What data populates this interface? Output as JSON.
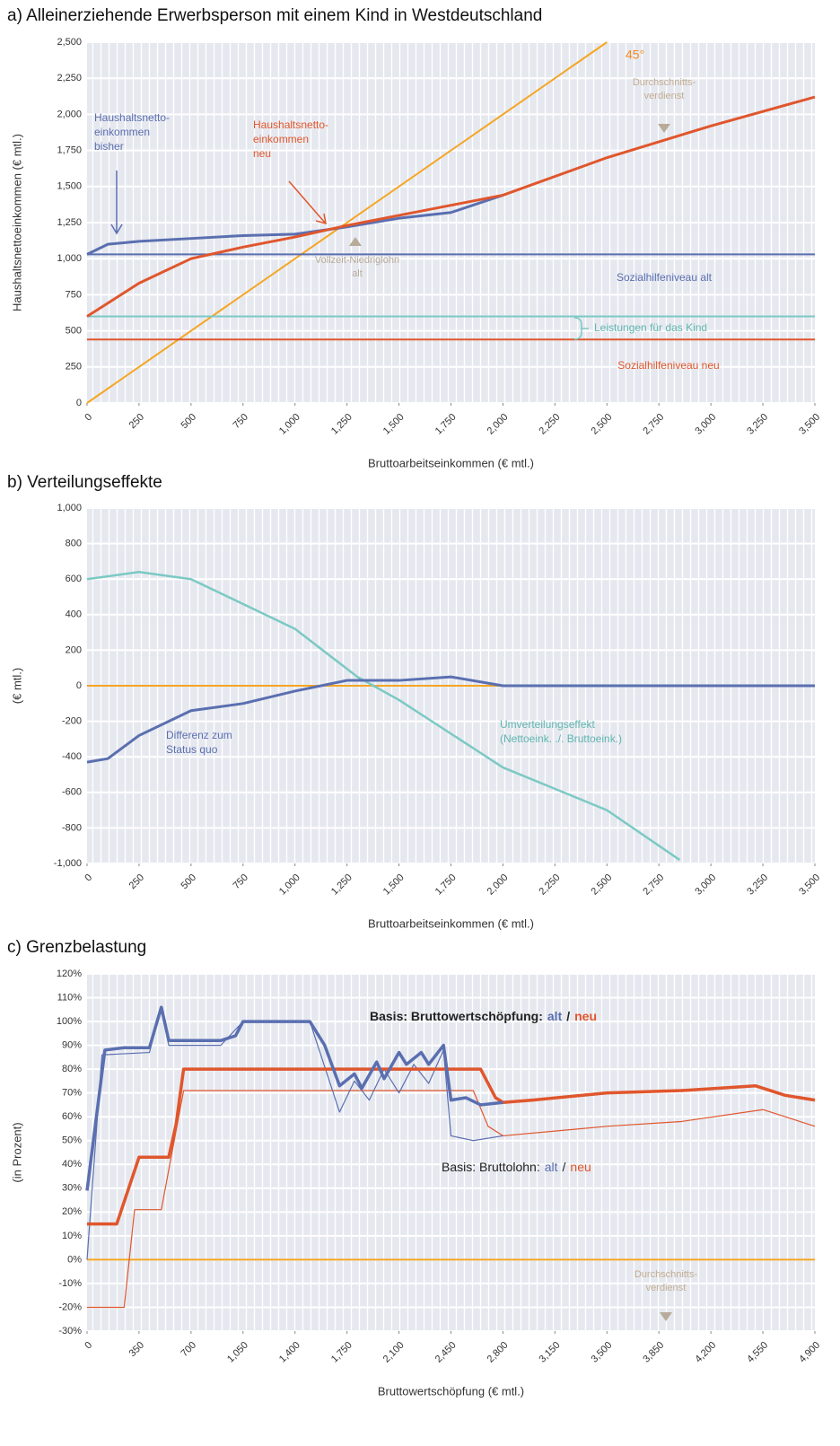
{
  "chart_data": [
    {
      "type": "line",
      "title": "a) Alleinerziehende Erwerbsperson mit einem Kind in Westdeutschland",
      "xlabel": "Bruttoarbeitseinkommen (€ mtl.)",
      "ylabel": "Haushaltsnettoeinkommen (€ mtl.)",
      "xlim": [
        0,
        3500
      ],
      "ylim": [
        0,
        2500
      ],
      "xticks": [
        0,
        250,
        500,
        750,
        {
          "value": 1000,
          "label": "1,000"
        },
        {
          "value": 1250,
          "label": "1,250"
        },
        {
          "value": 1500,
          "label": "1,500"
        },
        {
          "value": 1750,
          "label": "1,750"
        },
        {
          "value": 2000,
          "label": "2,000"
        },
        {
          "value": 2250,
          "label": "2,250"
        },
        {
          "value": 2500,
          "label": "2,500"
        },
        {
          "value": 2750,
          "label": "2,750"
        },
        {
          "value": 3000,
          "label": "3,000"
        },
        {
          "value": 3250,
          "label": "3,250"
        },
        {
          "value": 3500,
          "label": "3,500"
        }
      ],
      "yticks": [
        0,
        250,
        500,
        750,
        {
          "value": 1000,
          "label": "1,000"
        },
        {
          "value": 1250,
          "label": "1,250"
        },
        {
          "value": 1500,
          "label": "1,500"
        },
        {
          "value": 1750,
          "label": "1,750"
        },
        {
          "value": 2000,
          "label": "2,000"
        },
        {
          "value": 2250,
          "label": "2,250"
        },
        {
          "value": 2500,
          "label": "2,500"
        }
      ],
      "series": [
        {
          "color": "#f5a623",
          "width": 2,
          "x": [
            0,
            2500
          ],
          "values": [
            0,
            2500
          ]
        },
        {
          "color": "#5a6fb0",
          "width": 2,
          "x": [
            0,
            3500
          ],
          "values": [
            1030,
            1030
          ]
        },
        {
          "color": "#7cc9c4",
          "width": 2,
          "x": [
            0,
            3500
          ],
          "values": [
            600,
            600
          ]
        },
        {
          "color": "#e0562c",
          "width": 2,
          "x": [
            0,
            3500
          ],
          "values": [
            440,
            440
          ]
        },
        {
          "color": "#5a6fb0",
          "width": 3,
          "x": [
            0,
            100,
            250,
            500,
            750,
            1000,
            1250,
            1500,
            1750,
            2000
          ],
          "values": [
            1030,
            1100,
            1120,
            1140,
            1160,
            1170,
            1220,
            1280,
            1320,
            1440
          ]
        },
        {
          "color": "#e0562c",
          "width": 3,
          "x": [
            0,
            250,
            500,
            750,
            1000,
            1250,
            1500,
            1750,
            2000,
            2500,
            3000,
            3500
          ],
          "values": [
            600,
            830,
            1000,
            1080,
            1150,
            1230,
            1300,
            1370,
            1440,
            1700,
            1920,
            2120
          ]
        }
      ],
      "annotations": [
        {
          "lines": [
            "45°"
          ],
          "color": "#f08a24"
        },
        {
          "lines": [
            "Durchschnitts-",
            "verdienst"
          ],
          "color": "#c2ad92"
        },
        {
          "lines": [
            "Haushaltsnetto-",
            "einkommen",
            "bisher"
          ],
          "color": "#5a6fb0"
        },
        {
          "lines": [
            "Haushaltsnetto-",
            "einkommen",
            "neu"
          ],
          "color": "#e0562c"
        },
        {
          "lines": [
            "Vollzeit-Niedriglohn",
            "alt"
          ],
          "color": "#b8ab9a"
        },
        {
          "lines": [
            "Sozialhilfeniveau alt"
          ],
          "color": "#5a6fb0"
        },
        {
          "lines": [
            "Leistungen für das Kind"
          ],
          "color": "#5fb5b0"
        },
        {
          "lines": [
            "Sozialhilfeniveau neu"
          ],
          "color": "#e0562c"
        }
      ]
    },
    {
      "type": "line",
      "title": "b) Verteilungseffekte",
      "xlabel": "Bruttoarbeitseinkommen (€ mtl.)",
      "ylabel": "(€ mtl.)",
      "xlim": [
        0,
        3500
      ],
      "ylim": [
        -1000,
        1000
      ],
      "xticks": [
        0,
        250,
        500,
        750,
        {
          "value": 1000,
          "label": "1,000"
        },
        {
          "value": 1250,
          "label": "1,250"
        },
        {
          "value": 1500,
          "label": "1,500"
        },
        {
          "value": 1750,
          "label": "1,750"
        },
        {
          "value": 2000,
          "label": "2,000"
        },
        {
          "value": 2250,
          "label": "2,250"
        },
        {
          "value": 2500,
          "label": "2,500"
        },
        {
          "value": 2750,
          "label": "2,750"
        },
        {
          "value": 3000,
          "label": "3,000"
        },
        {
          "value": 3250,
          "label": "3,250"
        },
        {
          "value": 3500,
          "label": "3,500"
        }
      ],
      "yticks": [
        {
          "value": -1000,
          "label": "-1,000"
        },
        -800,
        -600,
        -400,
        -200,
        0,
        200,
        400,
        600,
        800,
        {
          "value": 1000,
          "label": "1,000"
        }
      ],
      "series": [
        {
          "color": "#f5a623",
          "width": 2,
          "x": [
            0,
            3500
          ],
          "values": [
            0,
            0
          ]
        },
        {
          "color": "#7cc9c4",
          "width": 2.5,
          "x": [
            0,
            250,
            500,
            1000,
            1300,
            1500,
            2000,
            2500,
            2850
          ],
          "values": [
            600,
            640,
            600,
            320,
            50,
            -80,
            -460,
            -700,
            -980
          ]
        },
        {
          "color": "#5a6fb0",
          "width": 3,
          "x": [
            0,
            100,
            250,
            500,
            750,
            1000,
            1250,
            1500,
            1750,
            2000,
            3500
          ],
          "values": [
            -430,
            -410,
            -280,
            -140,
            -100,
            -30,
            30,
            30,
            50,
            0,
            0
          ]
        }
      ],
      "annotations": [
        {
          "lines": [
            "Differenz zum",
            "Status quo"
          ],
          "color": "#5a6fb0"
        },
        {
          "lines": [
            "Umverteilungseffekt",
            "(Nettoeink. ./. Bruttoeink.)"
          ],
          "color": "#5fb5b0"
        }
      ]
    },
    {
      "type": "line",
      "title": "c) Grenzbelastung",
      "xlabel": "Bruttowertschöpfung (€ mtl.)",
      "ylabel": "(in Prozent)",
      "xlim": [
        0,
        4900
      ],
      "ylim": [
        -30,
        120
      ],
      "xticks": [
        0,
        350,
        700,
        {
          "value": 1050,
          "label": "1,050"
        },
        {
          "value": 1400,
          "label": "1,400"
        },
        {
          "value": 1750,
          "label": "1,750"
        },
        {
          "value": 2100,
          "label": "2,100"
        },
        {
          "value": 2450,
          "label": "2,450"
        },
        {
          "value": 2800,
          "label": "2,800"
        },
        {
          "value": 3150,
          "label": "3,150"
        },
        {
          "value": 3500,
          "label": "3,500"
        },
        {
          "value": 3850,
          "label": "3,850"
        },
        {
          "value": 4200,
          "label": "4,200"
        },
        {
          "value": 4550,
          "label": "4,550"
        },
        {
          "value": 4900,
          "label": "4,900"
        }
      ],
      "yticks": [
        {
          "value": -30,
          "label": "-30%"
        },
        {
          "value": -20,
          "label": "-20%"
        },
        {
          "value": -10,
          "label": "-10%"
        },
        {
          "value": 0,
          "label": "0%"
        },
        {
          "value": 10,
          "label": "10%"
        },
        {
          "value": 20,
          "label": "20%"
        },
        {
          "value": 30,
          "label": "30%"
        },
        {
          "value": 40,
          "label": "40%"
        },
        {
          "value": 50,
          "label": "50%"
        },
        {
          "value": 60,
          "label": "60%"
        },
        {
          "value": 70,
          "label": "70%"
        },
        {
          "value": 80,
          "label": "80%"
        },
        {
          "value": 90,
          "label": "90%"
        },
        {
          "value": 100,
          "label": "100%"
        },
        {
          "value": 110,
          "label": "110%"
        },
        {
          "value": 120,
          "label": "120%"
        }
      ],
      "series": [
        {
          "color": "#f5a623",
          "width": 2,
          "x": [
            0,
            4900
          ],
          "values": [
            0,
            0
          ]
        },
        {
          "color": "#e0562c",
          "width": 1.2,
          "x": [
            0,
            250,
            320,
            500,
            650,
            2600,
            2700,
            2800,
            3500,
            4000,
            4550,
            4900
          ],
          "values": [
            -20,
            -20,
            21,
            21,
            71,
            71,
            56,
            52,
            56,
            58,
            63,
            56
          ]
        },
        {
          "color": "#5a6fb0",
          "width": 1.2,
          "x": [
            0,
            100,
            420,
            500,
            550,
            900,
            1050,
            1500,
            1700,
            1800,
            1900,
            2000,
            2100,
            2200,
            2300,
            2400,
            2450,
            2600,
            2800
          ],
          "values": [
            0,
            86,
            87,
            106,
            90,
            90,
            100,
            100,
            62,
            75,
            67,
            80,
            70,
            82,
            74,
            88,
            52,
            50,
            52
          ]
        },
        {
          "color": "#e0562c",
          "width": 3.5,
          "x": [
            0,
            200,
            350,
            550,
            600,
            650,
            2650,
            2750,
            2800,
            3000,
            3500,
            4000,
            4500,
            4700,
            4900
          ],
          "values": [
            15,
            15,
            43,
            43,
            57,
            80,
            80,
            68,
            66,
            67,
            70,
            71,
            73,
            69,
            67
          ]
        },
        {
          "color": "#5a6fb0",
          "width": 3.5,
          "x": [
            0,
            120,
            250,
            420,
            500,
            550,
            700,
            900,
            1000,
            1050,
            1500,
            1600,
            1700,
            1800,
            1850,
            1950,
            2000,
            2100,
            2150,
            2250,
            2300,
            2400,
            2450,
            2550,
            2650,
            2800
          ],
          "values": [
            29,
            88,
            89,
            89,
            106,
            92,
            92,
            92,
            94,
            100,
            100,
            90,
            73,
            78,
            72,
            83,
            76,
            87,
            82,
            87,
            82,
            90,
            67,
            68,
            65,
            66
          ]
        }
      ],
      "annotations": [
        {
          "parts": [
            {
              "text": "Basis: Bruttowertschöpfung:",
              "color": "#222222"
            },
            {
              "text": "alt",
              "color": "#5a6fb0"
            },
            {
              "text": "/",
              "color": "#222222"
            },
            {
              "text": "neu",
              "color": "#e0562c"
            }
          ],
          "bold": true
        },
        {
          "parts": [
            {
              "text": "Basis: Bruttolohn:",
              "color": "#222222"
            },
            {
              "text": "alt",
              "color": "#5a6fb0"
            },
            {
              "text": "/",
              "color": "#222222"
            },
            {
              "text": "neu",
              "color": "#e0562c"
            }
          ],
          "bold": false
        },
        {
          "lines": [
            "Durchschnitts-",
            "verdienst"
          ],
          "color": "#c2ad92"
        }
      ]
    }
  ]
}
